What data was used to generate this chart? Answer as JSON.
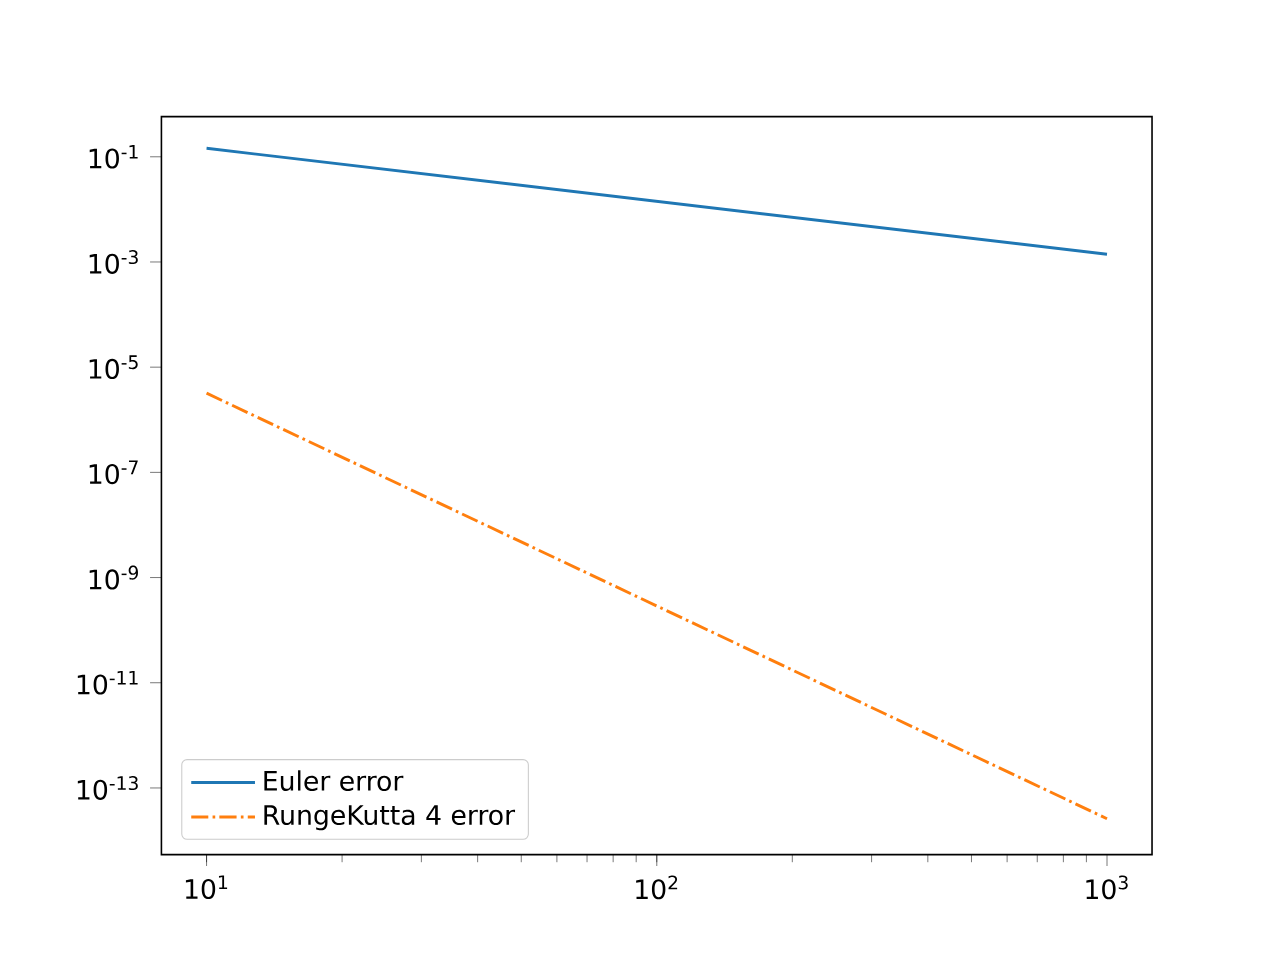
{
  "chart_data": {
    "type": "line",
    "log": "xy",
    "legend": "bottom left",
    "grid": false,
    "x": [
      10,
      1000
    ],
    "series": [
      {
        "name": "Euler error",
        "color": "#1f77b4",
        "line_style": "solid",
        "values": [
          0.145,
          0.0014
        ]
      },
      {
        "name": "RungeKutta 4 error",
        "color": "#ff7f0e",
        "line_style": "dashdot",
        "values": [
          3.2e-06,
          2.6e-14
        ]
      }
    ],
    "xlim": [
      7.94,
      1259
    ],
    "ylim": [
      5.4e-15,
      0.58
    ],
    "xticks": [
      {
        "value": 10,
        "label": "10$^{1}$"
      },
      {
        "value": 100,
        "label": "10$^{2}$"
      },
      {
        "value": 1000,
        "label": "10$^{3}$"
      }
    ],
    "yticks": [
      {
        "value": 1e-13,
        "label": "10$^{-13}$"
      },
      {
        "value": 1e-11,
        "label": "10$^{-11}$"
      },
      {
        "value": 1e-09,
        "label": "10$^{-9}$"
      },
      {
        "value": 1e-07,
        "label": "10$^{-7}$"
      },
      {
        "value": 1e-05,
        "label": "10$^{-5}$"
      },
      {
        "value": 0.001,
        "label": "10$^{-3}$"
      },
      {
        "value": 0.1,
        "label": "10$^{-1}$"
      }
    ]
  }
}
